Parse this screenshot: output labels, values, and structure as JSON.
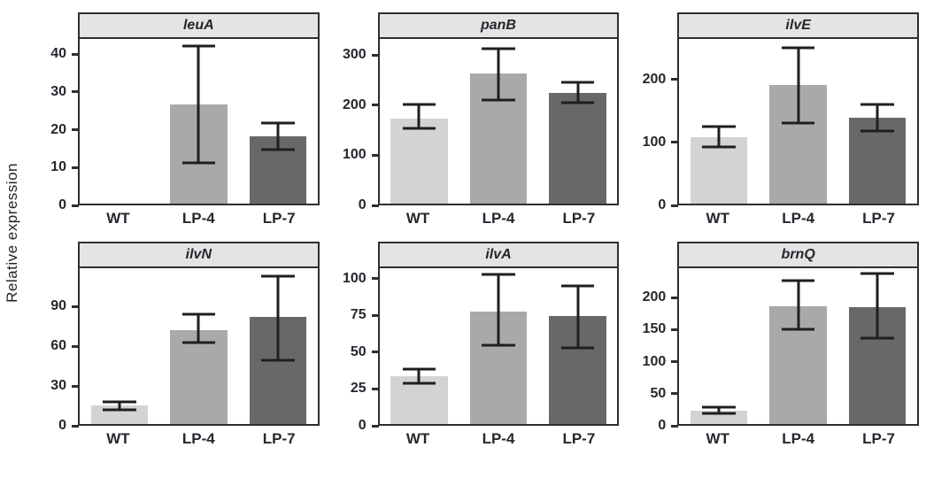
{
  "figure": {
    "y_axis_label": "Relative expression",
    "categories": [
      "WT",
      "LP-4",
      "LP-7"
    ],
    "bar_colors": [
      "#d3d3d3",
      "#a9a9a9",
      "#686868"
    ],
    "border_color": "#2e2e2e",
    "header_bg": "#e4e4e4",
    "error_bar_color": "#1f1f1f",
    "background": "#ffffff",
    "layout": "2 rows x 3 columns of bar panels, shared rotated y-axis label at far left, no legend, no gridlines"
  },
  "chart_data": [
    {
      "type": "bar",
      "title": "leuA",
      "categories": [
        "WT",
        "LP-4",
        "LP-7"
      ],
      "values": [
        0,
        26.5,
        18
      ],
      "err_low": [
        null,
        11,
        14.5
      ],
      "err_high": [
        null,
        42,
        21.5
      ],
      "yticks": [
        0,
        10,
        20,
        30,
        40
      ],
      "ylim": [
        0,
        44
      ],
      "xlabel": "",
      "ylabel": "Relative expression"
    },
    {
      "type": "bar",
      "title": "panB",
      "categories": [
        "WT",
        "LP-4",
        "LP-7"
      ],
      "values": [
        172,
        262,
        224
      ],
      "err_low": [
        151,
        209,
        203
      ],
      "err_high": [
        200,
        313,
        245
      ],
      "yticks": [
        0,
        100,
        200,
        300
      ],
      "ylim": [
        0,
        332
      ],
      "xlabel": "",
      "ylabel": "Relative expression"
    },
    {
      "type": "bar",
      "title": "ilvE",
      "categories": [
        "WT",
        "LP-4",
        "LP-7"
      ],
      "values": [
        106,
        190,
        137
      ],
      "err_low": [
        91,
        129,
        116
      ],
      "err_high": [
        123,
        250,
        159
      ],
      "yticks": [
        0,
        100,
        200
      ],
      "ylim": [
        0,
        264
      ],
      "xlabel": "",
      "ylabel": "Relative expression"
    },
    {
      "type": "bar",
      "title": "ilvN",
      "categories": [
        "WT",
        "LP-4",
        "LP-7"
      ],
      "values": [
        14,
        72,
        82
      ],
      "err_low": [
        11,
        62,
        49
      ],
      "err_high": [
        17,
        84,
        113
      ],
      "yticks": [
        0,
        30,
        60,
        90
      ],
      "ylim": [
        0,
        119
      ],
      "xlabel": "",
      "ylabel": "Relative expression"
    },
    {
      "type": "bar",
      "title": "ilvA",
      "categories": [
        "WT",
        "LP-4",
        "LP-7"
      ],
      "values": [
        33,
        77,
        74
      ],
      "err_low": [
        28,
        54,
        52
      ],
      "err_high": [
        38,
        103,
        95
      ],
      "yticks": [
        0,
        25,
        50,
        75,
        100
      ],
      "ylim": [
        0,
        107
      ],
      "xlabel": "",
      "ylabel": "Relative expression"
    },
    {
      "type": "bar",
      "title": "brnQ",
      "categories": [
        "WT",
        "LP-4",
        "LP-7"
      ],
      "values": [
        21,
        186,
        185
      ],
      "err_low": [
        17,
        149,
        135
      ],
      "err_high": [
        26,
        227,
        237
      ],
      "yticks": [
        0,
        50,
        100,
        150,
        200
      ],
      "ylim": [
        0,
        246
      ],
      "xlabel": "",
      "ylabel": "Relative expression"
    }
  ]
}
